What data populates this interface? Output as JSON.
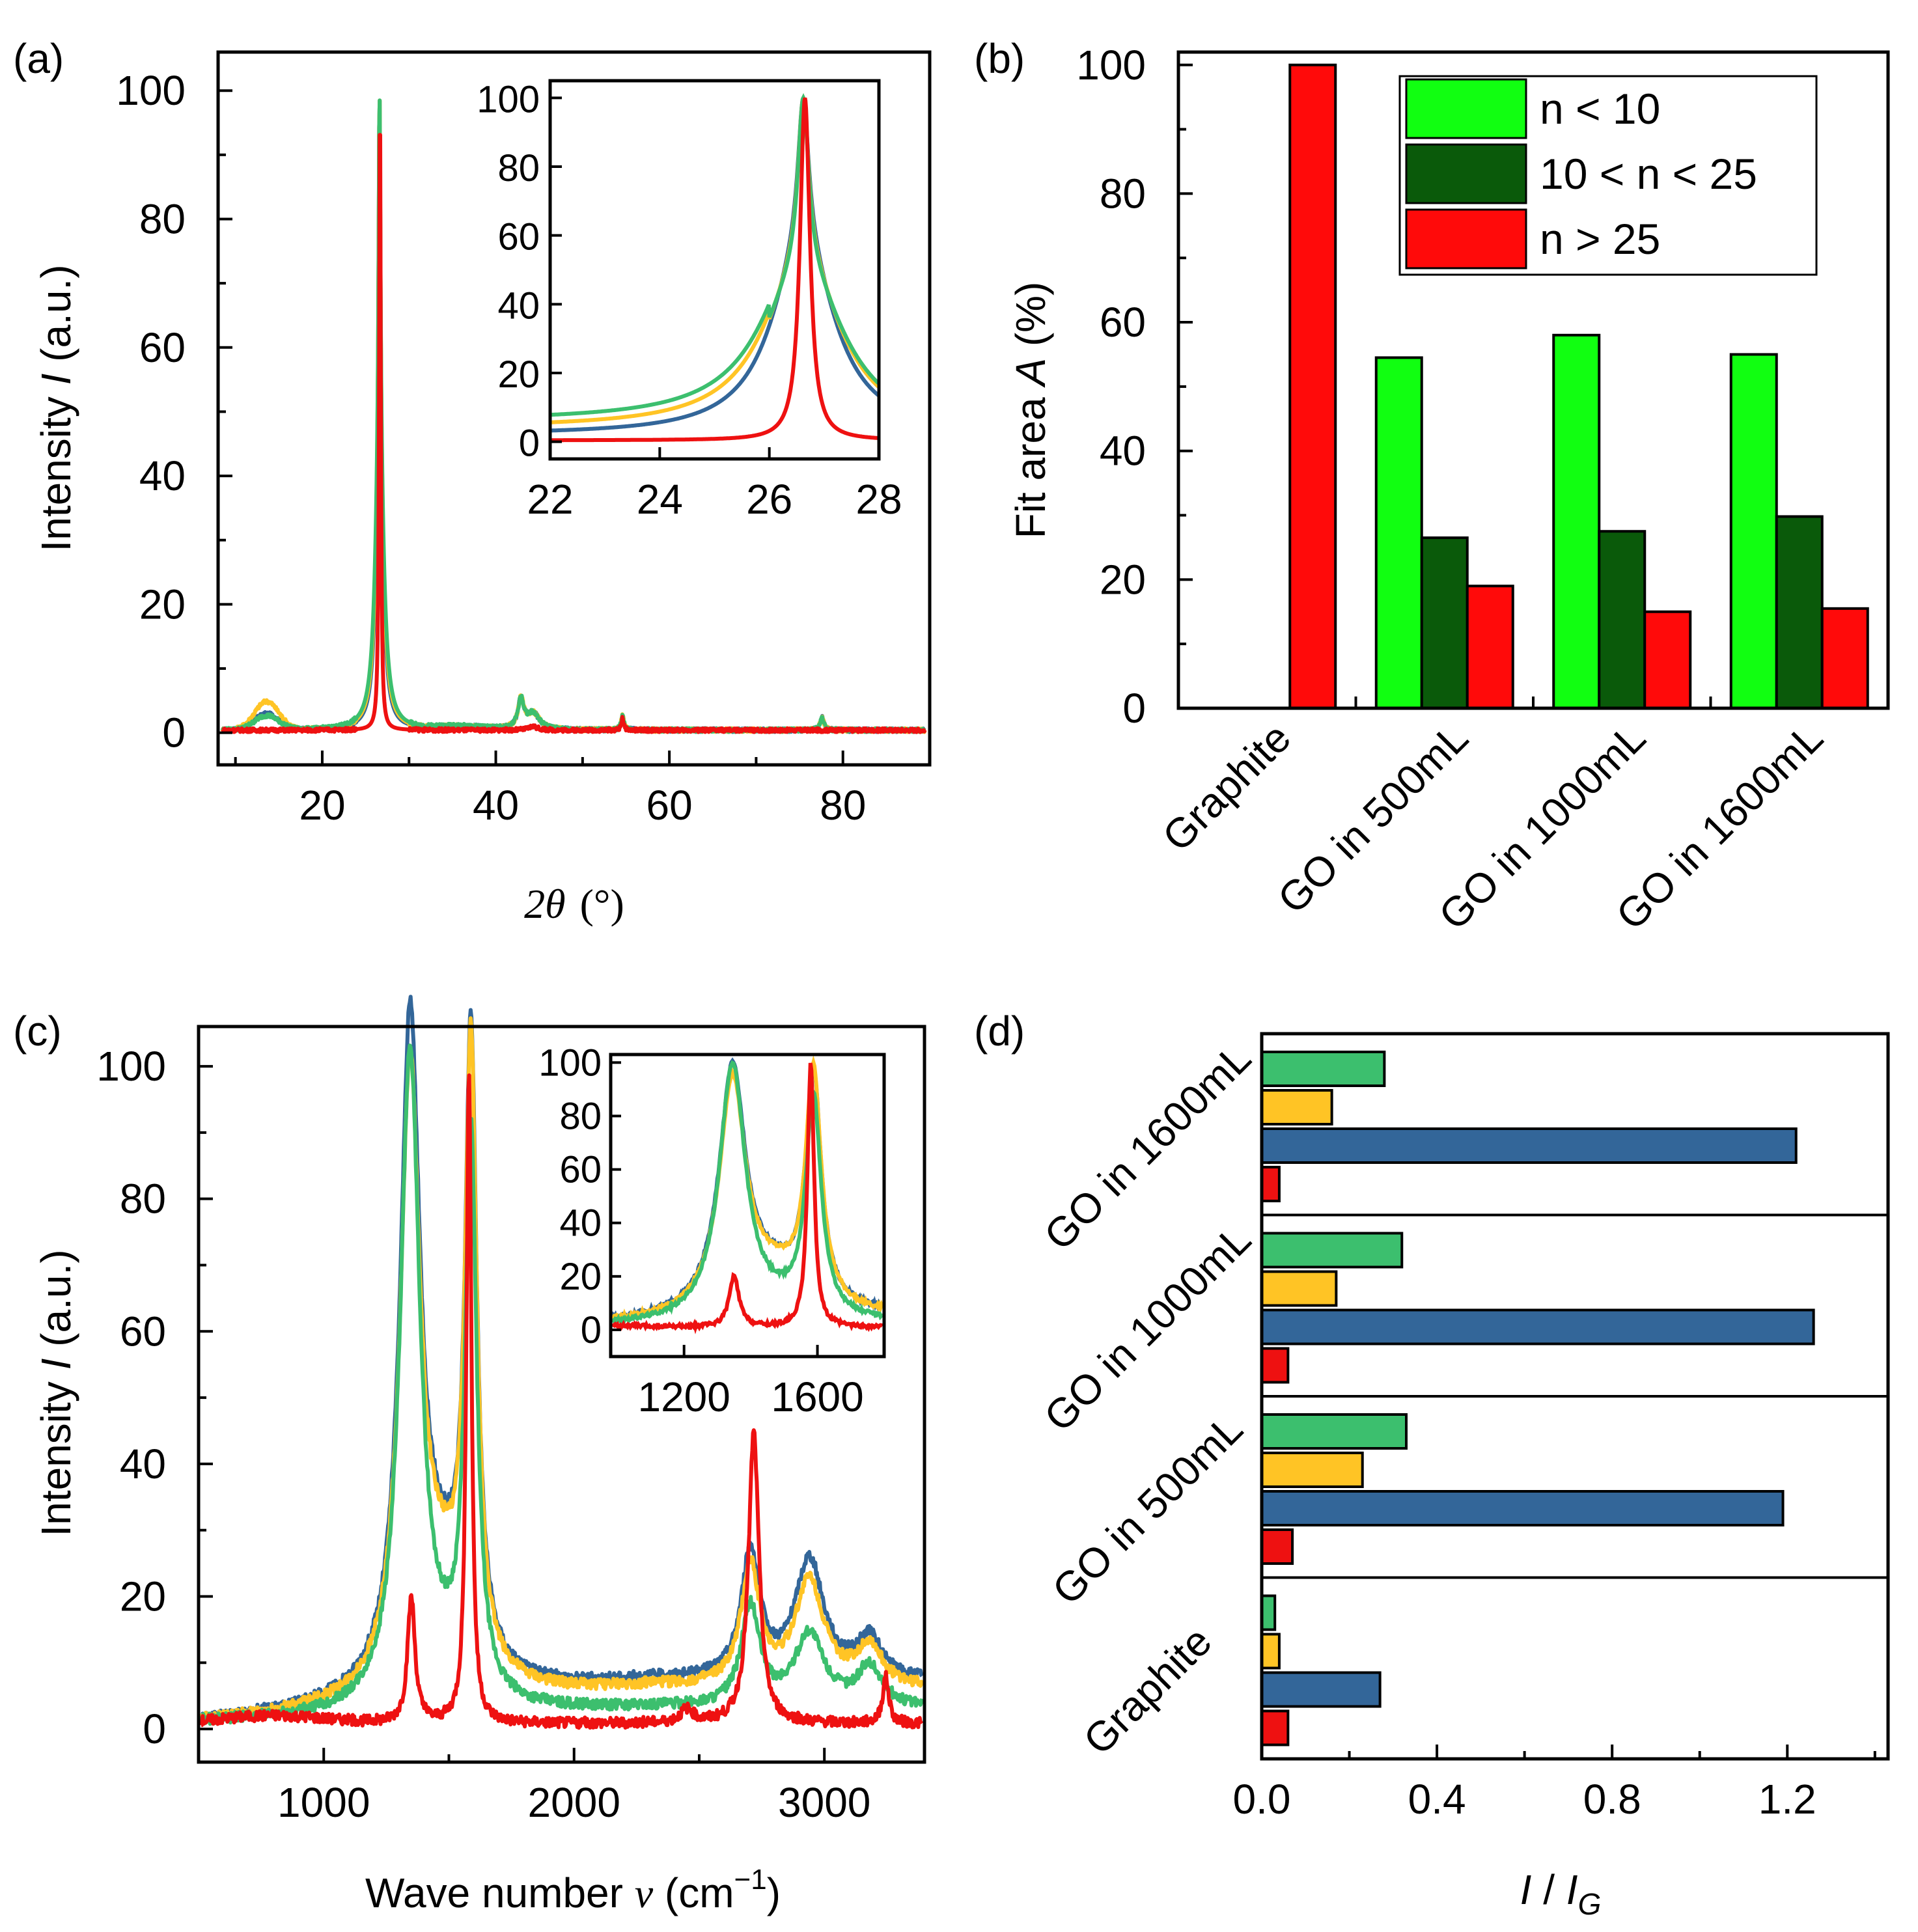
{
  "colors": {
    "red": "#ee1111",
    "blue": "#336699",
    "yellow": "#ffc425",
    "green": "#3cbf6e",
    "light_green": "#11ff11",
    "dark_green": "#0a5a0a",
    "bar_red": "#ff0a0a"
  },
  "chart_data": [
    {
      "panel": "(a)",
      "type": "line",
      "xlabel_italic": "2θ",
      "xlabel_unit": "(°)",
      "ylabel_pre": "Intensity ",
      "ylabel_italic": "I",
      "ylabel_post": " (a.u.)",
      "xlim": [
        8,
        90
      ],
      "ylim": [
        -5,
        106
      ],
      "xticks": [
        20,
        40,
        60,
        80
      ],
      "yticks": [
        0,
        20,
        40,
        60,
        80,
        100
      ],
      "inset": {
        "xlim": [
          22,
          28
        ],
        "ylim": [
          -5,
          105
        ],
        "xticks": [
          22,
          24,
          26,
          28
        ],
        "yticks": [
          0,
          20,
          40,
          60,
          80,
          100
        ]
      }
    },
    {
      "panel": "(b)",
      "type": "bar",
      "ylabel_pre": "Fit area ",
      "ylabel_italic": "A",
      "ylabel_post": " (%)",
      "categories": [
        "Graphite",
        "GO in 500mL",
        "GO in 1000mL",
        "GO in 1600mL"
      ],
      "series": [
        {
          "name": "n < 10",
          "color": "#11ff11",
          "values": [
            0,
            54.5,
            58,
            55
          ]
        },
        {
          "name": "10 < n < 25",
          "color": "#0a5a0a",
          "values": [
            0,
            26.5,
            27.5,
            29.8
          ]
        },
        {
          "name": "n > 25",
          "color": "#ff0a0a",
          "values": [
            100,
            19,
            15,
            15.5
          ]
        }
      ],
      "ylim": [
        0,
        102
      ],
      "yticks": [
        0,
        20,
        40,
        60,
        80,
        100
      ]
    },
    {
      "panel": "(c)",
      "type": "line",
      "xlabel_pre": "Wave number ",
      "xlabel_italic": "ν",
      "xlabel_post": " (cm",
      "xlabel_sup": "−1",
      "xlabel_close": ")",
      "ylabel_pre": "Intensity ",
      "ylabel_italic": "I",
      "ylabel_post": " (a.u.)",
      "xlim": [
        500,
        3400
      ],
      "ylim": [
        -5,
        106
      ],
      "xticks": [
        1000,
        2000,
        3000
      ],
      "yticks": [
        0,
        20,
        40,
        60,
        80,
        100
      ],
      "inset": {
        "xlim": [
          980,
          1800
        ],
        "ylim": [
          -10,
          103
        ],
        "xticks": [
          1200,
          1600
        ],
        "yticks": [
          0,
          20,
          40,
          60,
          80,
          100
        ]
      }
    },
    {
      "panel": "(d)",
      "type": "bar",
      "orientation": "horizontal",
      "xlabel_italic_1": "I",
      "xlabel_sep": " / ",
      "xlabel_italic_2": "I",
      "xlabel_sub": "G",
      "categories": [
        "Graphite",
        "GO in 500mL",
        "GO in 1000mL",
        "GO in 1600mL"
      ],
      "series": [
        {
          "name": "green",
          "color": "#3cbf6e",
          "values": [
            0.03,
            0.33,
            0.32,
            0.28
          ]
        },
        {
          "name": "yellow",
          "color": "#ffc425",
          "values": [
            0.04,
            0.23,
            0.17,
            0.16
          ]
        },
        {
          "name": "blue",
          "color": "#336699",
          "values": [
            0.27,
            1.19,
            1.26,
            1.22
          ]
        },
        {
          "name": "red",
          "color": "#ee1111",
          "values": [
            0.06,
            0.07,
            0.06,
            0.04
          ]
        }
      ],
      "xlim": [
        0,
        1.43
      ],
      "xticks": [
        "0.0",
        "0.4",
        "0.8",
        "1.2"
      ],
      "xtick_values": [
        0,
        0.4,
        0.8,
        1.2
      ]
    }
  ]
}
